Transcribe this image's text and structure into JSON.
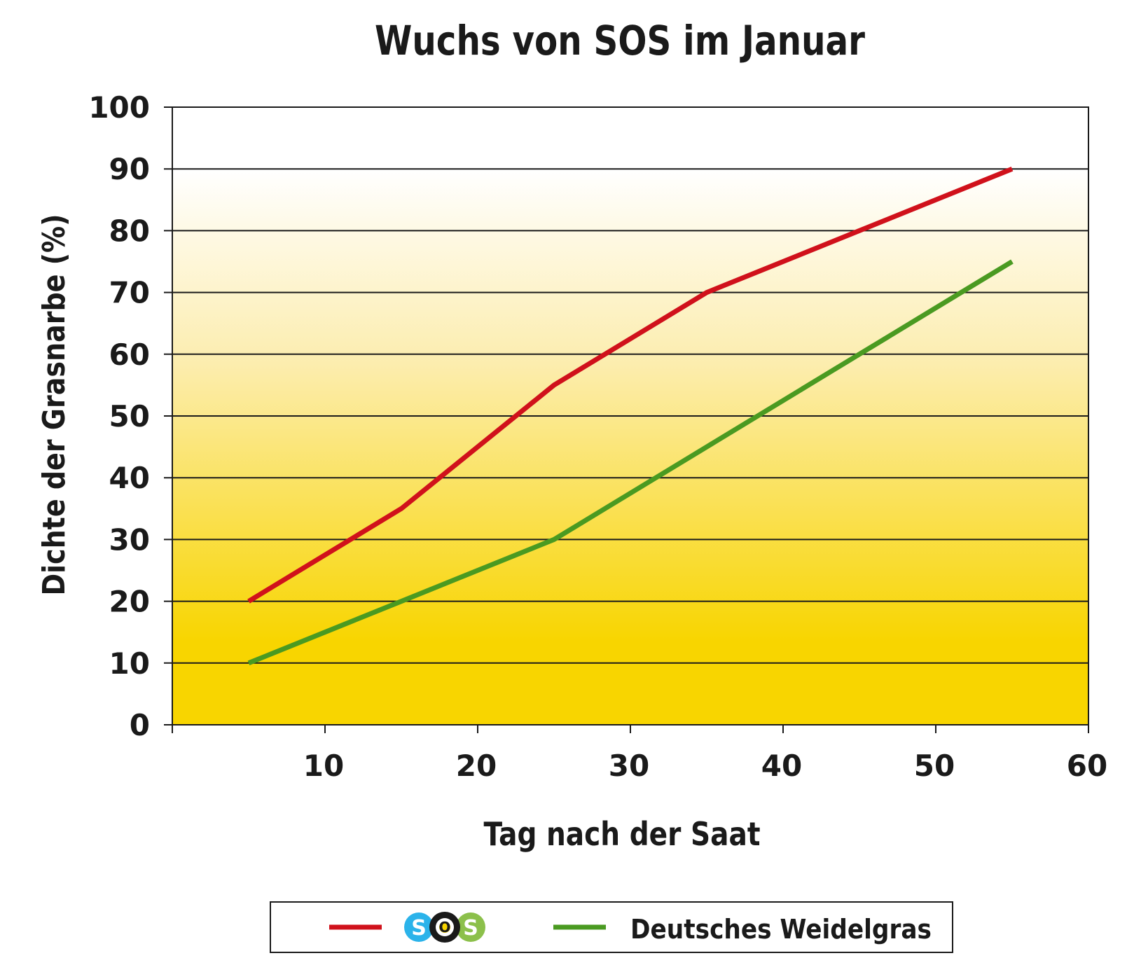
{
  "chart_data": {
    "type": "line",
    "title": "Wuchs von SOS im Januar",
    "xlabel": "Tag nach der Saat",
    "ylabel": "Dichte der Grasnarbe (%)",
    "xlim": [
      0,
      60
    ],
    "ylim": [
      0,
      100
    ],
    "xticks": [
      10,
      20,
      30,
      40,
      50,
      60
    ],
    "yticks": [
      0,
      10,
      20,
      30,
      40,
      50,
      60,
      70,
      80,
      90,
      100
    ],
    "grid": true,
    "legend_position": "bottom",
    "background_gradient": [
      "#ffffff",
      "#f8d500"
    ],
    "series": [
      {
        "name": "SOS",
        "legend_logo": "sos-logo",
        "logo_letters": [
          "S",
          "O",
          "S"
        ],
        "logo_colors": [
          "#2bb3ea",
          "#1a1a1a",
          "#8cc04b"
        ],
        "color": "#d0111b",
        "x": [
          5,
          15,
          25,
          35,
          45,
          55
        ],
        "y": [
          20,
          35,
          55,
          70,
          80,
          90
        ]
      },
      {
        "name": "Deutsches Weidelgras",
        "color": "#4a9a21",
        "x": [
          5,
          15,
          25,
          35,
          45,
          55
        ],
        "y": [
          10,
          20,
          30,
          45,
          60,
          75
        ]
      }
    ]
  }
}
